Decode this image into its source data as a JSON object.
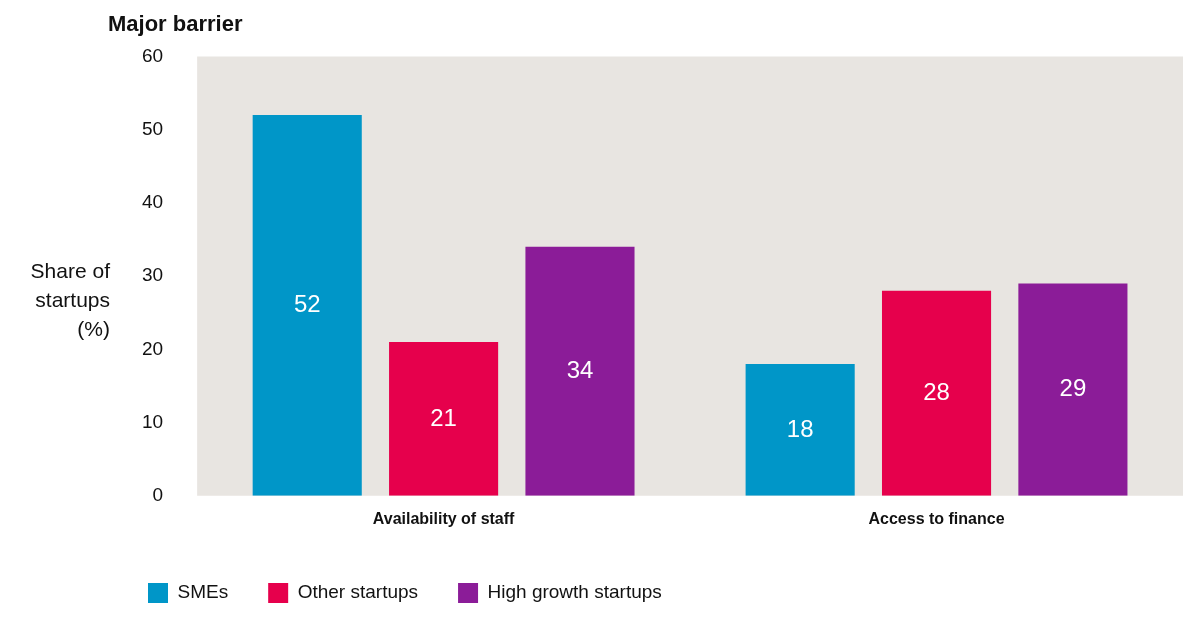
{
  "chart_data": {
    "type": "bar",
    "title": "Major barrier",
    "ylabel": "Share of startups (%)",
    "categories": [
      "Availability of staff",
      "Access to finance"
    ],
    "series": [
      {
        "name": "SMEs",
        "color": "#0096c8",
        "values": [
          52,
          18
        ]
      },
      {
        "name": "Other startups",
        "color": "#e6004c",
        "values": [
          21,
          28
        ]
      },
      {
        "name": "High growth startups",
        "color": "#8b1c98",
        "values": [
          34,
          29
        ]
      }
    ],
    "ylim": [
      0,
      60
    ],
    "yticks": [
      0,
      10,
      20,
      30,
      40,
      50,
      60
    ],
    "data_labels": true,
    "legend": "bottom left"
  }
}
